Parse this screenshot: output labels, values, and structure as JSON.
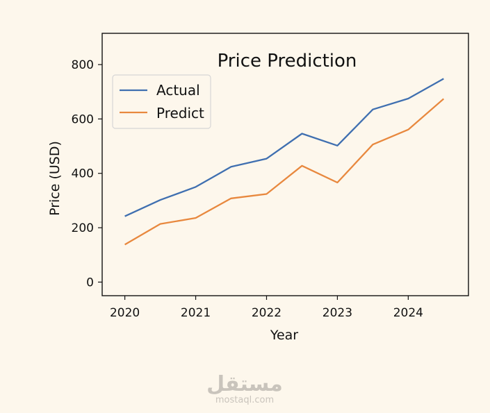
{
  "chart_data": {
    "type": "line",
    "title": "Price Prediction",
    "xlabel": "Year",
    "ylabel": "Price (USD)",
    "x": [
      2020,
      2020.5,
      2021,
      2021.5,
      2022,
      2022.5,
      2023,
      2023.5,
      2024,
      2024.5
    ],
    "xticks": [
      2020,
      2021,
      2022,
      2023,
      2024
    ],
    "xtick_labels": [
      "2020",
      "2021",
      "2022",
      "2023",
      "2024"
    ],
    "yticks": [
      0,
      200,
      400,
      600,
      800
    ],
    "ytick_labels": [
      "0",
      "200",
      "400",
      "600",
      "800"
    ],
    "xlim": [
      2019.68,
      2024.85
    ],
    "ylim": [
      -50,
      915
    ],
    "legend_position": "top-left",
    "series": [
      {
        "name": "Actual",
        "color": "#3f6fb0",
        "values": [
          242,
          302,
          350,
          424,
          454,
          546,
          502,
          635,
          675,
          748
        ]
      },
      {
        "name": "Predict",
        "color": "#e8883e",
        "values": [
          138,
          214,
          236,
          308,
          324,
          428,
          366,
          506,
          561,
          674
        ]
      }
    ]
  },
  "watermark": {
    "logo_text": "مستقل",
    "url": "mostaql.com"
  }
}
